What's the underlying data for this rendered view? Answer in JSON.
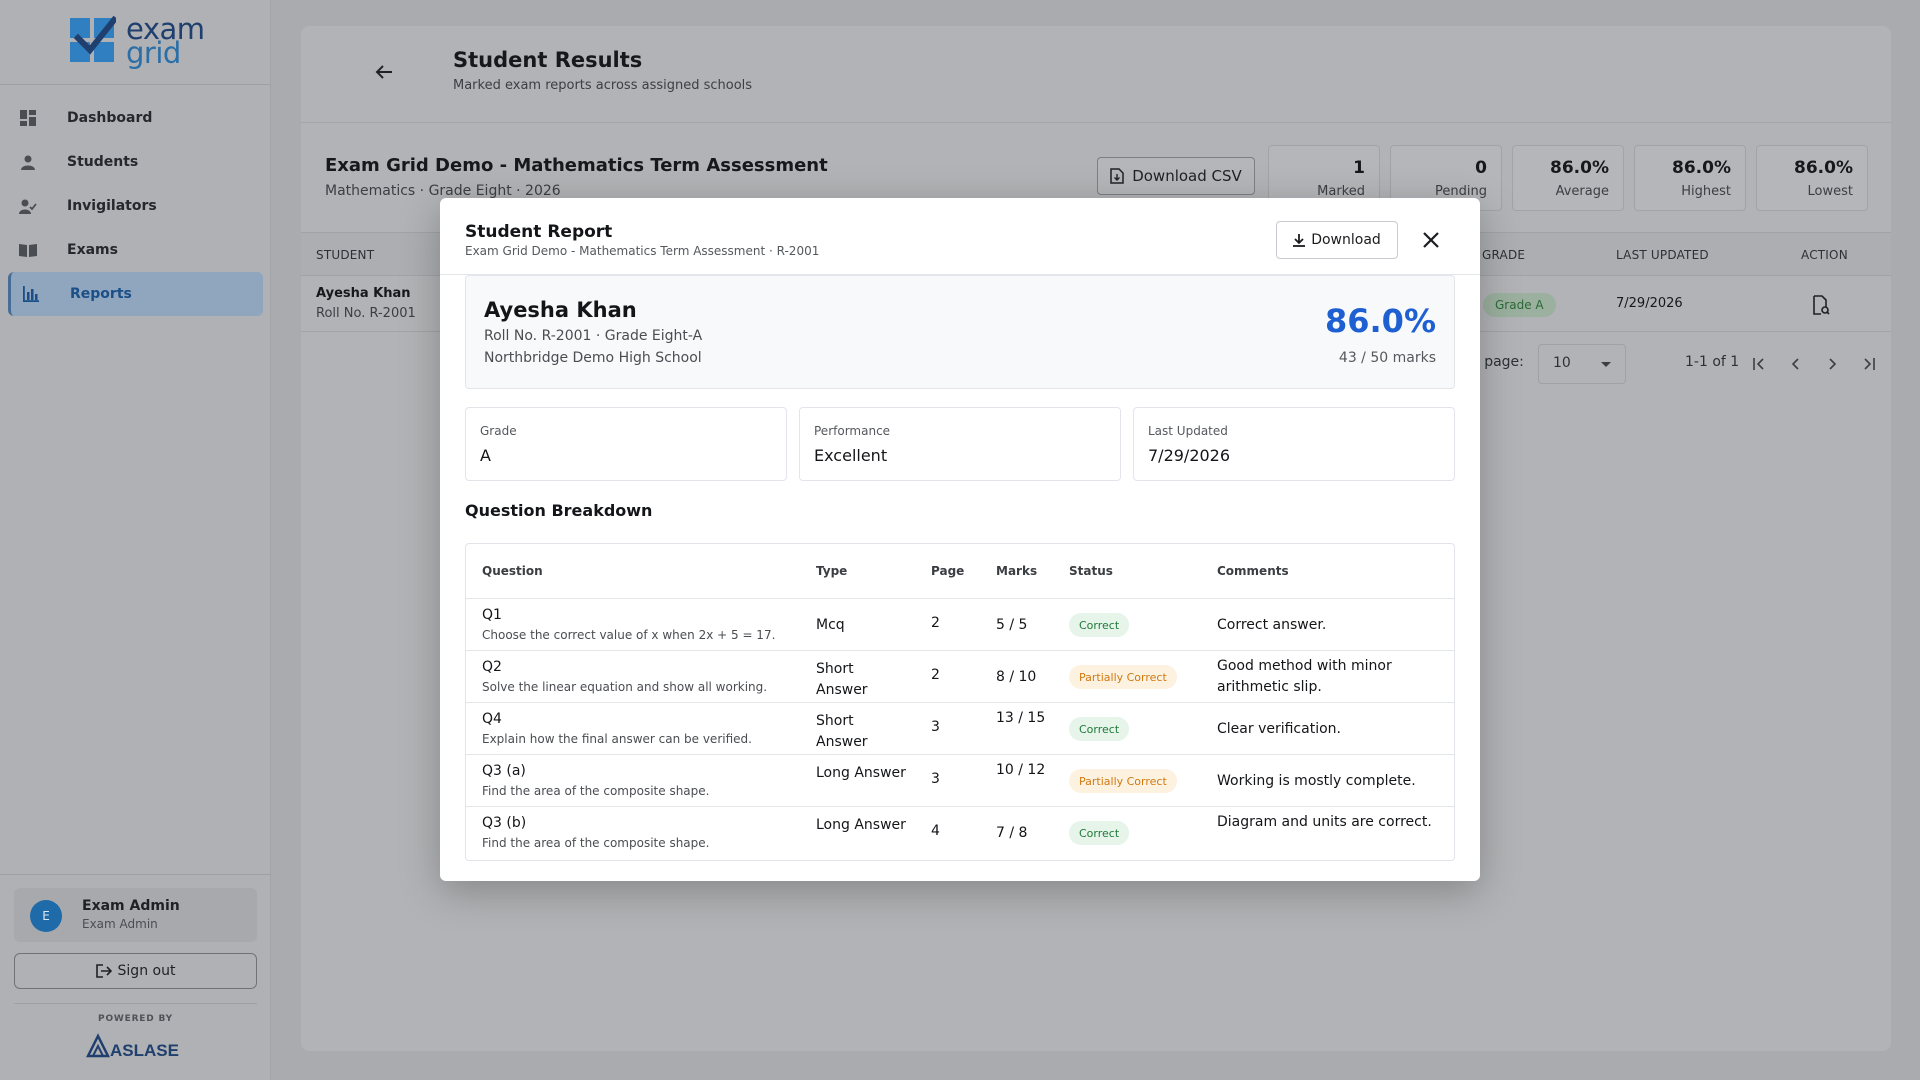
{
  "brand": {
    "word1": "exam",
    "word2": "grid",
    "powered_by": "POWERED BY",
    "partner": "ASLASE"
  },
  "sidebar": {
    "items": [
      {
        "label": "Dashboard",
        "icon": "dashboard-icon",
        "active": false
      },
      {
        "label": "Students",
        "icon": "students-icon",
        "active": false
      },
      {
        "label": "Invigilators",
        "icon": "invigilators-icon",
        "active": false
      },
      {
        "label": "Exams",
        "icon": "exams-icon",
        "active": false
      },
      {
        "label": "Reports",
        "icon": "reports-icon",
        "active": true
      }
    ],
    "user": {
      "initial": "E",
      "name": "Exam Admin",
      "role": "Exam Admin"
    },
    "signout_label": "Sign out"
  },
  "page": {
    "title": "Student Results",
    "subtitle": "Marked exam reports across assigned schools",
    "exam_title": "Exam Grid Demo - Mathematics Term Assessment",
    "exam_subtitle": "Mathematics · Grade Eight · 2026",
    "download_csv_label": "Download CSV",
    "stats": [
      {
        "value": "1",
        "label": "Marked"
      },
      {
        "value": "0",
        "label": "Pending"
      },
      {
        "value": "86.0%",
        "label": "Average"
      },
      {
        "value": "86.0%",
        "label": "Highest"
      },
      {
        "value": "86.0%",
        "label": "Lowest"
      }
    ],
    "table": {
      "headers": {
        "student": "STUDENT",
        "grade": "GRADE",
        "last_updated": "LAST UPDATED",
        "action": "ACTION"
      },
      "row": {
        "name": "Ayesha Khan",
        "roll": "Roll No. R-2001",
        "grade": "Grade A",
        "last_updated": "7/29/2026"
      }
    },
    "pagination": {
      "rows_label": "r page:",
      "rows_value": "10",
      "range": "1-1 of 1"
    }
  },
  "modal": {
    "title": "Student Report",
    "subtitle": "Exam Grid Demo - Mathematics Term Assessment · R-2001",
    "download_label": "Download",
    "student": {
      "name": "Ayesha Khan",
      "roll_grade": "Roll No. R-2001 · Grade Eight-A",
      "school": "Northbridge Demo High School",
      "score": "86.0%",
      "marks": "43 / 50 marks"
    },
    "info": [
      {
        "label": "Grade",
        "value": "A"
      },
      {
        "label": "Performance",
        "value": "Excellent"
      },
      {
        "label": "Last Updated",
        "value": "7/29/2026"
      }
    ],
    "breakdown_title": "Question Breakdown",
    "columns": {
      "question": "Question",
      "type": "Type",
      "page": "Page",
      "marks": "Marks",
      "status": "Status",
      "comments": "Comments"
    },
    "rows": [
      {
        "id": "Q1",
        "text": "Choose the correct value of x when 2x + 5 = 17.",
        "type": "Mcq",
        "page": "2",
        "marks": "5 / 5",
        "status": "Correct",
        "status_kind": "correct",
        "comment": "Correct answer."
      },
      {
        "id": "Q2",
        "text": "Solve the linear equation and show all working.",
        "type": "Short Answer",
        "page": "2",
        "marks": "8 / 10",
        "status": "Partially Correct",
        "status_kind": "partial",
        "comment": "Good method with minor arithmetic slip."
      },
      {
        "id": "Q4",
        "text": "Explain how the final answer can be verified.",
        "type": "Short Answer",
        "page": "3",
        "marks": "13 / 15",
        "status": "Correct",
        "status_kind": "correct",
        "comment": "Clear verification."
      },
      {
        "id": "Q3 (a)",
        "text": "Find the area of the composite shape.",
        "type": "Long Answer",
        "page": "3",
        "marks": "10 / 12",
        "status": "Partially Correct",
        "status_kind": "partial",
        "comment": "Working is mostly complete."
      },
      {
        "id": "Q3 (b)",
        "text": "Find the area of the composite shape.",
        "type": "Long Answer",
        "page": "4",
        "marks": "7 / 8",
        "status": "Correct",
        "status_kind": "correct",
        "comment": "Diagram and units are correct."
      }
    ]
  },
  "colors": {
    "accent": "#1e5fd1",
    "correct_bg": "#e6f4ea",
    "correct_fg": "#1f7a3a",
    "partial_bg": "#fdf1df",
    "partial_fg": "#d07a12"
  }
}
